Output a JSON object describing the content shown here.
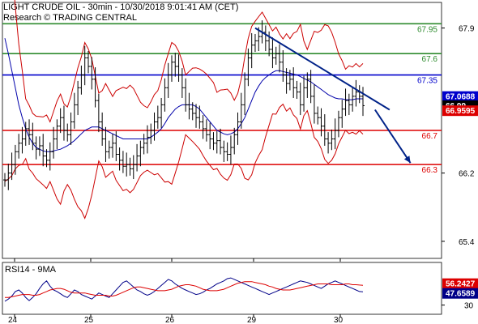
{
  "header": {
    "title": "LIGHT CRUDE OIL - 30min - 10/30/2018 9:01:41 AM (CET)",
    "subtitle": "Research © TRADING CENTRAL"
  },
  "chart_data": [
    {
      "type": "candlestick",
      "ylim": [
        65.2,
        68.2
      ],
      "y_ticks": [
        "67.9",
        "67.0688",
        "66.99",
        "66.2",
        "65.4"
      ],
      "x_ticks": [
        "24",
        "25",
        "26",
        "29",
        "30"
      ],
      "levels": [
        {
          "label": "67.95",
          "value": 67.95,
          "color": "#2e8b2e"
        },
        {
          "label": "67.6",
          "value": 67.6,
          "color": "#2e8b2e"
        },
        {
          "label": "67.35",
          "value": 67.35,
          "color": "#0000cc"
        },
        {
          "label": "66.7",
          "value": 66.7,
          "color": "#dd0000"
        },
        {
          "label": "66.3",
          "value": 66.3,
          "color": "#dd0000"
        }
      ],
      "price_tags": [
        {
          "label": "67.0688",
          "value": 67.0688,
          "bg": "#0000cc",
          "fg": "#ffffff"
        },
        {
          "label": "66.99",
          "value": 66.99,
          "bg": "#000000",
          "fg": "#ffffff"
        },
        {
          "label": "66.9595",
          "value": 66.9595,
          "bg": "#dd0000",
          "fg": "#ffffff"
        }
      ],
      "close": [
        66.12,
        66.2,
        66.3,
        66.45,
        66.55,
        66.6,
        66.72,
        66.65,
        66.55,
        66.48,
        66.52,
        66.4,
        66.35,
        66.45,
        66.6,
        66.75,
        66.85,
        66.7,
        66.65,
        66.8,
        67.0,
        67.2,
        67.35,
        67.55,
        67.45,
        67.3,
        67.05,
        66.8,
        66.6,
        66.45,
        66.5,
        66.55,
        66.42,
        66.35,
        66.28,
        66.3,
        66.25,
        66.3,
        66.4,
        66.5,
        66.55,
        66.62,
        66.7,
        66.8,
        66.85,
        67.0,
        67.2,
        67.35,
        67.5,
        67.45,
        67.35,
        67.2,
        67.0,
        66.95,
        66.9,
        66.85,
        66.8,
        66.72,
        66.65,
        66.6,
        66.55,
        66.58,
        66.5,
        66.45,
        66.42,
        66.5,
        66.65,
        66.8,
        67.0,
        67.3,
        67.55,
        67.7,
        67.75,
        67.8,
        67.85,
        67.75,
        67.65,
        67.55,
        67.6,
        67.5,
        67.35,
        67.25,
        67.3,
        67.2,
        67.15,
        67.0,
        67.2,
        67.3,
        67.1,
        66.9,
        66.85,
        66.75,
        66.6,
        66.55,
        66.6,
        66.7,
        66.85,
        66.95,
        67.05,
        67.0,
        67.1,
        67.15,
        67.1,
        66.99
      ],
      "sma": [
        67.78,
        67.6,
        67.4,
        67.2,
        67.0,
        66.85,
        66.72,
        66.62,
        66.55,
        66.5,
        66.48,
        66.46,
        66.45,
        66.45,
        66.46,
        66.47,
        66.48,
        66.5,
        66.52,
        66.55,
        66.58,
        66.62,
        66.66,
        66.7,
        66.72,
        66.74,
        66.74,
        66.74,
        66.72,
        66.7,
        66.68,
        66.66,
        66.64,
        66.62,
        66.6,
        66.6,
        66.6,
        66.6,
        66.6,
        66.6,
        66.6,
        66.6,
        66.62,
        66.65,
        66.68,
        66.72,
        66.78,
        66.85,
        66.9,
        66.95,
        66.98,
        67.0,
        67.0,
        67.0,
        67.0,
        66.98,
        66.95,
        66.9,
        66.85,
        66.8,
        66.75,
        66.7,
        66.68,
        66.66,
        66.65,
        66.66,
        66.68,
        66.72,
        66.78,
        66.85,
        66.95,
        67.05,
        67.15,
        67.22,
        67.28,
        67.32,
        67.35,
        67.38,
        67.4,
        67.4,
        67.39,
        67.38,
        67.37,
        67.36,
        67.35,
        67.33,
        67.31,
        67.29,
        67.27,
        67.24,
        67.21,
        67.18,
        67.15,
        67.12,
        67.1,
        67.08,
        67.07,
        67.07,
        67.06,
        67.06,
        67.06,
        67.07,
        67.07,
        67.07
      ],
      "trendline": {
        "from": [
          72,
          67.9
        ],
        "to": [
          106,
          66.98
        ],
        "color": "#002288"
      },
      "projection": {
        "from": [
          106,
          66.98
        ],
        "to": [
          112,
          66.3
        ],
        "color": "#002288"
      }
    },
    {
      "type": "line",
      "title": "RSI14 - 9MA",
      "y_ticks": [
        "56.2427",
        "47.6589",
        "30"
      ],
      "series": [
        {
          "name": "RSI14",
          "color": "#000088",
          "values": [
            35,
            38,
            42,
            48,
            50,
            46,
            40,
            36,
            40,
            45,
            52,
            58,
            62,
            55,
            50,
            48,
            45,
            42,
            40,
            45,
            50,
            48,
            44,
            42,
            40,
            38,
            42,
            46,
            44,
            42,
            40,
            45,
            50,
            55,
            60,
            62,
            58,
            54,
            50,
            48,
            45,
            43,
            45,
            48,
            52,
            56,
            60,
            64,
            62,
            58,
            55,
            52,
            50,
            48,
            46,
            44,
            45,
            47,
            50,
            52,
            55,
            58,
            60,
            62,
            65,
            66,
            64,
            62,
            60,
            58,
            56,
            54,
            52,
            50,
            48,
            46,
            44,
            46,
            48,
            50,
            52,
            54,
            56,
            58,
            60,
            62,
            61,
            60,
            58,
            56,
            54,
            52,
            55,
            58,
            60,
            62,
            60,
            58,
            56,
            54,
            52,
            50,
            48,
            47.66
          ]
        },
        {
          "name": "9MA",
          "color": "#dd0000",
          "values": [
            40,
            40,
            41,
            42,
            43,
            44,
            44,
            44,
            43,
            43,
            44,
            46,
            48,
            50,
            51,
            52,
            52,
            51,
            49,
            47,
            46,
            46,
            46,
            46,
            45,
            44,
            43,
            43,
            43,
            43,
            42,
            42,
            43,
            45,
            47,
            49,
            51,
            53,
            54,
            54,
            53,
            52,
            51,
            50,
            49,
            49,
            49,
            50,
            51,
            53,
            55,
            56,
            57,
            57,
            56,
            55,
            53,
            51,
            50,
            49,
            49,
            49,
            50,
            51,
            53,
            55,
            57,
            59,
            60,
            61,
            61,
            61,
            60,
            59,
            58,
            57,
            55,
            54,
            52,
            51,
            50,
            50,
            50,
            51,
            52,
            53,
            54,
            55,
            56,
            57,
            58,
            58,
            58,
            58,
            57,
            57,
            57,
            57,
            58,
            58,
            57,
            57,
            56.5,
            56.24
          ]
        }
      ],
      "price_tags": [
        {
          "label": "56.2427",
          "value": 56.2427,
          "bg": "#dd0000",
          "fg": "#ffffff"
        },
        {
          "label": "47.6589",
          "value": 47.6589,
          "bg": "#000088",
          "fg": "#ffffff"
        }
      ],
      "ylim": [
        20,
        80
      ]
    }
  ]
}
